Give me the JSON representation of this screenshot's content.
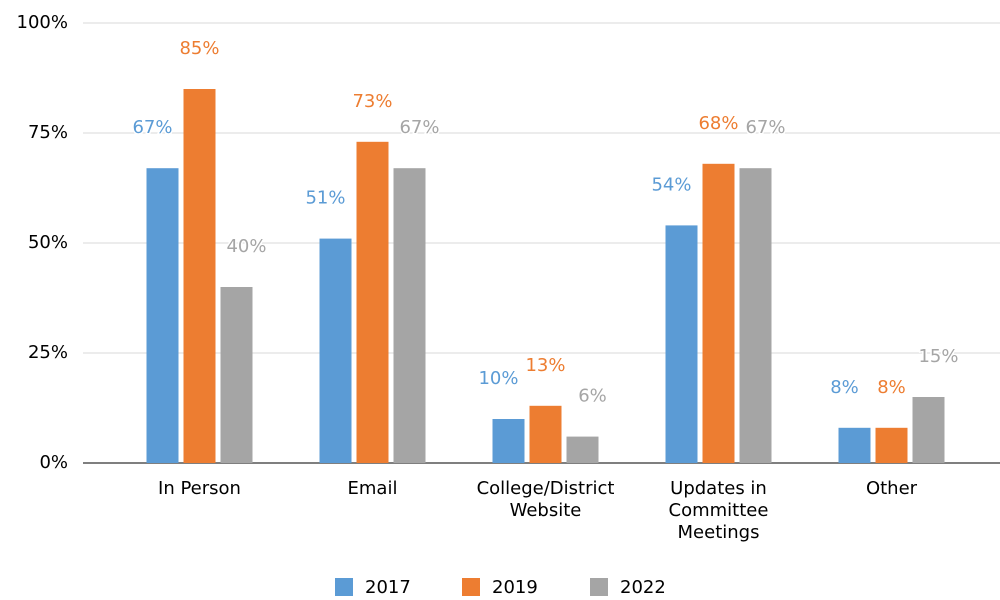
{
  "chart_data": {
    "type": "bar",
    "categories": [
      "In Person",
      "Email",
      "College/District Website",
      "Updates in Committee Meetings",
      "Other"
    ],
    "series": [
      {
        "name": "2017",
        "color": "#5b9bd5",
        "values": [
          67,
          51,
          10,
          54,
          8
        ],
        "value_labels": [
          "67%",
          "51%",
          "10%",
          "54%",
          "8%"
        ]
      },
      {
        "name": "2019",
        "color": "#ed7d31",
        "values": [
          85,
          73,
          13,
          68,
          8
        ],
        "value_labels": [
          "85%",
          "73%",
          "13%",
          "68%",
          "8%"
        ]
      },
      {
        "name": "2022",
        "color": "#a5a5a5",
        "values": [
          40,
          67,
          6,
          67,
          15
        ],
        "value_labels": [
          "40%",
          "67%",
          "6%",
          "67%",
          "15%"
        ]
      }
    ],
    "ylim": [
      0,
      100
    ],
    "yticks": [
      {
        "value": 0,
        "label": "0%"
      },
      {
        "value": 25,
        "label": "25%"
      },
      {
        "value": 50,
        "label": "50%"
      },
      {
        "value": 75,
        "label": "75%"
      },
      {
        "value": 100,
        "label": "100%"
      }
    ],
    "grid": true,
    "legend": "bottom"
  }
}
